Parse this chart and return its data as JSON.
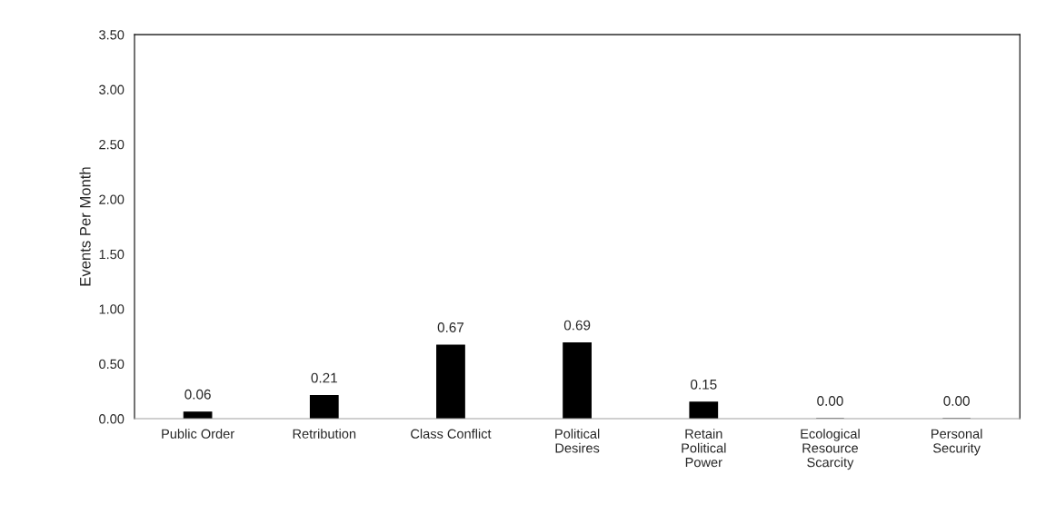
{
  "chart_data": {
    "type": "bar",
    "ylabel": "Events Per Month",
    "categories": [
      "Public Order",
      "Retribution",
      "Class Conflict",
      "Political\nDesires",
      "Retain\nPolitical\nPower",
      "Ecological\nResource\nScarcity",
      "Personal\nSecurity"
    ],
    "values": [
      0.06,
      0.21,
      0.67,
      0.69,
      0.15,
      0.0,
      0.0
    ],
    "value_labels": [
      "0.06",
      "0.21",
      "0.67",
      "0.69",
      "0.15",
      "0.00",
      "0.00"
    ],
    "color": "#000000",
    "ylim": [
      0,
      3.5
    ],
    "yticks": [
      {
        "value": 0,
        "label": "0.00"
      },
      {
        "value": 0.5,
        "label": "0.50"
      },
      {
        "value": 1,
        "label": "1.00"
      },
      {
        "value": 1.5,
        "label": "1.50"
      },
      {
        "value": 2,
        "label": "2.00"
      },
      {
        "value": 2.5,
        "label": "2.50"
      },
      {
        "value": 3,
        "label": "3.00"
      },
      {
        "value": 3.5,
        "label": "3.50"
      }
    ],
    "grid": false,
    "legend": false
  }
}
